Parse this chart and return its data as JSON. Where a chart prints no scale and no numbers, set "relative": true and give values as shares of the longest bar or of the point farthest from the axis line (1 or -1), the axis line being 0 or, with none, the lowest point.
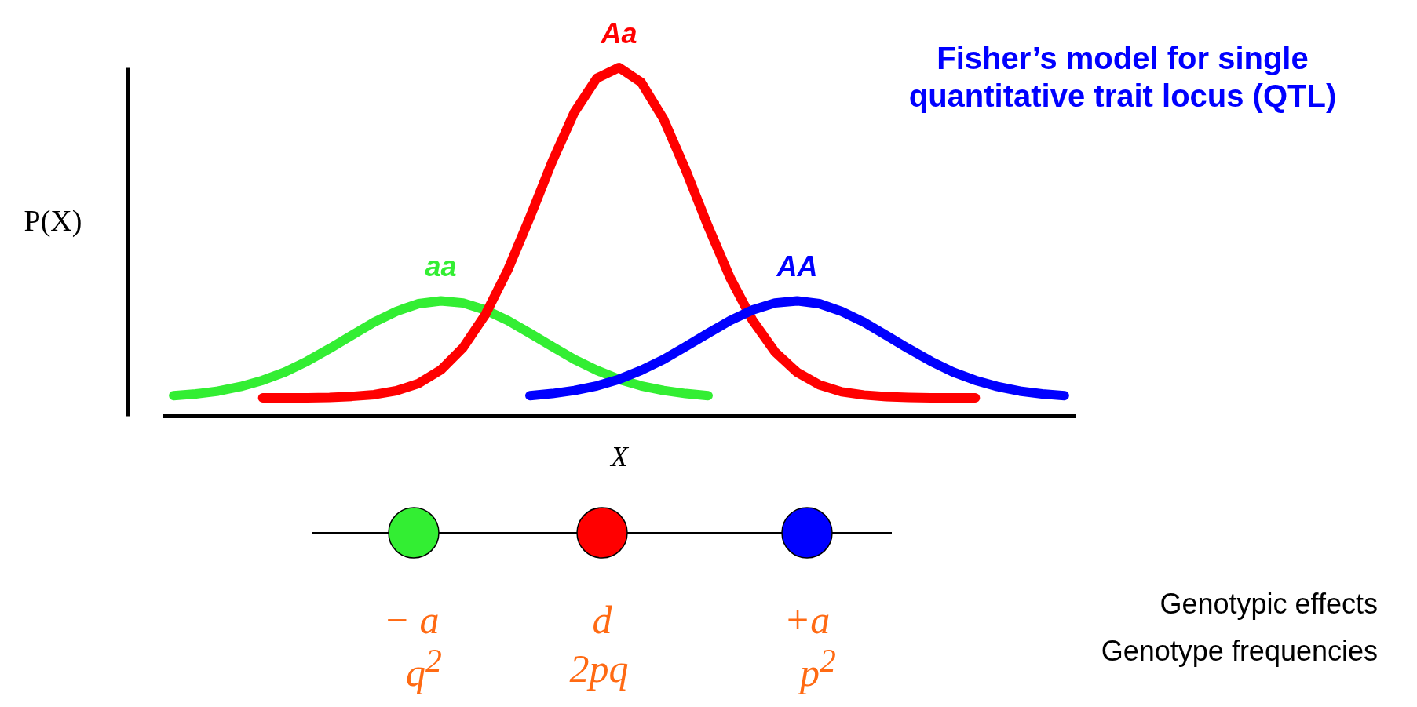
{
  "chart_data": {
    "type": "line",
    "title": "Fisher’s model for single quantitative trait locus (QTL)",
    "xlabel": "X",
    "ylabel": "P(X)",
    "relative": true,
    "legend": false,
    "grid": false,
    "categories": [
      null,
      null,
      null,
      null,
      null,
      null,
      null,
      null,
      null,
      null,
      null,
      null,
      null,
      null,
      null,
      null,
      null,
      null,
      null,
      null,
      null,
      null,
      null,
      null,
      null,
      null,
      null,
      null,
      null,
      null,
      null,
      null,
      null,
      null,
      null,
      null,
      null,
      null,
      null,
      null,
      null
    ],
    "series": [
      {
        "name": "aa",
        "color": "#33ee33",
        "values": [
          0.058,
          0.063,
          0.071,
          0.084,
          0.102,
          0.126,
          0.157,
          0.193,
          0.231,
          0.269,
          0.3,
          0.322,
          0.33,
          0.324,
          0.304,
          0.274,
          0.237,
          0.199,
          0.162,
          0.131,
          0.105,
          0.086,
          0.073,
          0.064,
          0.058,
          null,
          null,
          null,
          null,
          null,
          null,
          null,
          null,
          null,
          null,
          null,
          null,
          null,
          null,
          null,
          null
        ]
      },
      {
        "name": "Aa",
        "color": "#ff0000",
        "values": [
          null,
          null,
          null,
          null,
          0.052,
          0.052,
          0.052,
          0.053,
          0.056,
          0.061,
          0.072,
          0.093,
          0.132,
          0.196,
          0.291,
          0.418,
          0.57,
          0.73,
          0.872,
          0.969,
          1.0,
          0.957,
          0.852,
          0.705,
          0.544,
          0.395,
          0.274,
          0.184,
          0.125,
          0.089,
          0.069,
          0.06,
          0.055,
          0.053,
          0.052,
          0.052,
          0.052,
          null,
          null,
          null,
          null
        ]
      },
      {
        "name": "AA",
        "color": "#0000ff",
        "values": [
          null,
          null,
          null,
          null,
          null,
          null,
          null,
          null,
          null,
          null,
          null,
          null,
          null,
          null,
          null,
          null,
          0.058,
          0.064,
          0.073,
          0.086,
          0.105,
          0.131,
          0.162,
          0.199,
          0.237,
          0.274,
          0.304,
          0.324,
          0.33,
          0.322,
          0.3,
          0.269,
          0.231,
          0.193,
          0.157,
          0.126,
          0.102,
          0.084,
          0.071,
          0.063,
          0.058
        ]
      }
    ],
    "annotations": [
      "− a",
      "d",
      "+a",
      "q$^{2}$",
      "2pq",
      "p$^{2}$",
      "Genotypic effects",
      "Genotype frequencies"
    ]
  }
}
